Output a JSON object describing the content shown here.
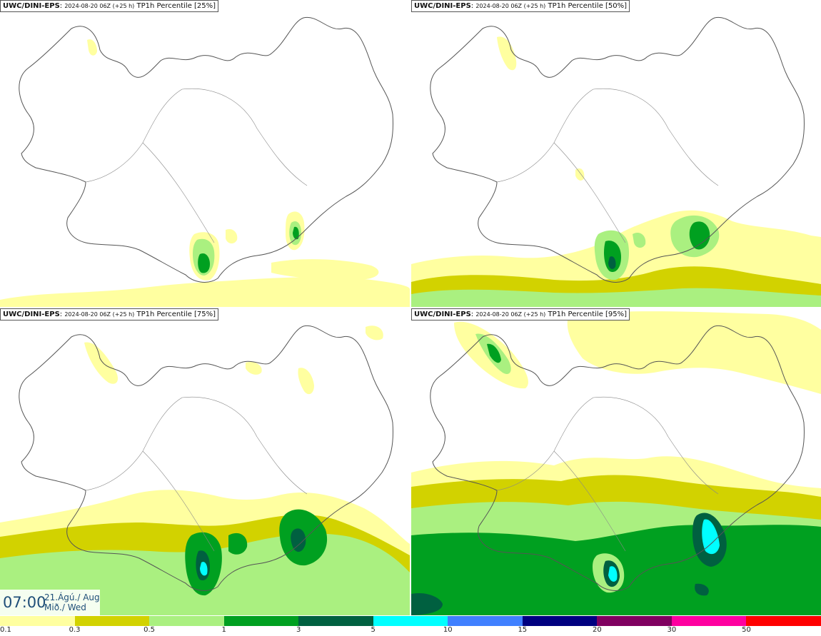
{
  "panels": [
    {
      "model": "UWC/DINI-EPS",
      "run": "2024-08-20 06Z (+25 h)",
      "label": "TP1h Percentile [25%]"
    },
    {
      "model": "UWC/DINI-EPS",
      "run": "2024-08-20 06Z (+25 h)",
      "label": "TP1h Percentile [50%]"
    },
    {
      "model": "UWC/DINI-EPS",
      "run": "2024-08-20 06Z (+25 h)",
      "label": "TP1h Percentile [75%]"
    },
    {
      "model": "UWC/DINI-EPS",
      "run": "2024-08-20 06Z (+25 h)",
      "label": "TP1h Percentile [95%]"
    }
  ],
  "timestamp": {
    "time": "07:00",
    "date": "21.Ágú./ Aug",
    "weekday": "Mið./ Wed"
  },
  "legend": {
    "labels": [
      "0.1",
      "0.3",
      "0.5",
      "1",
      "3",
      "5",
      "10",
      "15",
      "20",
      "30",
      "50"
    ],
    "colors": [
      "#ffffa0",
      "#d2d200",
      "#aaf080",
      "#00a020",
      "#006040",
      "#00ffff",
      "#4080ff",
      "#000080",
      "#800060",
      "#ff00a0",
      "#ff0000"
    ]
  }
}
